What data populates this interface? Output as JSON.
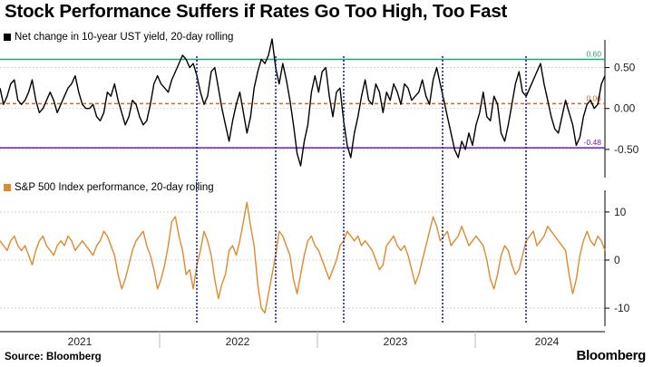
{
  "title": "Stock Performance Suffers if Rates Go Too High, Too Fast",
  "source": "Source: Bloomberg",
  "brand": "Bloomberg",
  "colors": {
    "yield": "#000000",
    "sp500": "#e0892d",
    "upper": "#22a07a",
    "mean": "#d2691e",
    "lower": "#6a1fb4",
    "vline": "#1a2b8f"
  },
  "chart_data": [
    {
      "type": "line",
      "legend": "Net change in 10-year UST yield, 20-day rolling",
      "ylim": [
        -0.8,
        0.75
      ],
      "yticks": [
        "0.50",
        "0.00",
        "-0.50"
      ],
      "yticks_values": [
        0.5,
        0.0,
        -0.5
      ],
      "reference_lines": [
        {
          "label": "0.60",
          "value": 0.6
        },
        {
          "label": "0.06",
          "value": 0.06
        },
        {
          "label": "-0.48",
          "value": -0.48
        }
      ],
      "series": [
        {
          "values": [
            0.25,
            0.05,
            0.15,
            0.3,
            0.35,
            0.1,
            0.05,
            0.1,
            0.2,
            0.35,
            0.1,
            -0.05,
            0.0,
            0.1,
            0.2,
            0.1,
            -0.05,
            0.05,
            0.15,
            0.25,
            0.3,
            0.4,
            0.2,
            0.05,
            0.0,
            0.0,
            0.05,
            -0.1,
            -0.15,
            -0.05,
            0.2,
            0.15,
            0.3,
            0.1,
            -0.05,
            -0.2,
            -0.1,
            0.1,
            0.05,
            -0.1,
            -0.2,
            -0.15,
            0.05,
            0.3,
            0.4,
            0.3,
            0.25,
            0.2,
            0.35,
            0.45,
            0.55,
            0.65,
            0.6,
            0.5,
            0.55,
            0.4,
            0.2,
            0.05,
            0.15,
            0.45,
            0.5,
            0.25,
            0.0,
            -0.2,
            -0.4,
            -0.15,
            0.05,
            0.2,
            -0.05,
            -0.3,
            -0.1,
            0.25,
            0.45,
            0.6,
            0.55,
            0.65,
            0.85,
            0.5,
            0.3,
            0.55,
            0.35,
            0.1,
            -0.2,
            -0.55,
            -0.7,
            -0.4,
            -0.2,
            0.2,
            0.4,
            0.2,
            0.45,
            0.5,
            0.15,
            -0.1,
            0.2,
            0.25,
            -0.15,
            -0.45,
            -0.6,
            -0.3,
            -0.1,
            0.15,
            0.35,
            0.1,
            0.05,
            0.3,
            0.2,
            -0.05,
            0.2,
            0.1,
            0.3,
            0.2,
            0.05,
            0.3,
            0.25,
            0.1,
            0.15,
            0.2,
            0.35,
            0.15,
            0.05,
            0.35,
            0.5,
            0.3,
            0.1,
            -0.1,
            -0.3,
            -0.5,
            -0.6,
            -0.4,
            -0.5,
            -0.3,
            -0.45,
            -0.2,
            -0.05,
            0.2,
            -0.1,
            -0.15,
            0.15,
            0.05,
            -0.3,
            -0.4,
            -0.2,
            0.05,
            0.3,
            0.45,
            0.2,
            0.15,
            0.25,
            0.35,
            0.45,
            0.55,
            0.3,
            0.1,
            -0.1,
            -0.25,
            -0.3,
            -0.1,
            0.1,
            -0.05,
            -0.2,
            -0.45,
            -0.35,
            -0.1,
            0.05,
            0.1,
            0.0,
            0.05,
            0.3,
            0.4
          ]
        }
      ]
    },
    {
      "type": "line",
      "legend": "S&P 500 Index performance, 20-day rolling",
      "ylim": [
        -13,
        13
      ],
      "yticks": [
        "10",
        "0",
        "-10"
      ],
      "yticks_values": [
        10,
        0,
        -10
      ],
      "series": [
        {
          "values": [
            4,
            3,
            2,
            4,
            5,
            3,
            2,
            3,
            1,
            -1,
            2,
            4,
            5,
            3,
            2,
            1,
            3,
            4,
            3,
            5,
            4,
            2,
            3,
            4,
            3,
            2,
            1,
            3,
            4,
            6,
            5,
            3,
            1,
            -3,
            -6,
            -4,
            -1,
            2,
            4,
            5,
            6,
            3,
            1,
            -2,
            -6,
            -4,
            -1,
            3,
            8,
            9,
            5,
            2,
            -3,
            -2,
            -6,
            -1,
            2,
            6,
            4,
            1,
            -4,
            -8,
            -5,
            -3,
            2,
            3,
            1,
            4,
            8,
            12,
            7,
            3,
            -5,
            -10,
            -11,
            -7,
            -3,
            1,
            6,
            5,
            3,
            1,
            -4,
            -7,
            -3,
            1,
            4,
            5,
            3,
            2,
            0,
            -2,
            -4,
            -2,
            0,
            3,
            4,
            6,
            5,
            4,
            5,
            3,
            4,
            3,
            2,
            0,
            -2,
            -1,
            3,
            4,
            5,
            3,
            2,
            3,
            1,
            -2,
            -5,
            -3,
            0,
            3,
            6,
            9,
            7,
            4,
            5,
            6,
            3,
            4,
            5,
            7,
            5,
            3,
            4,
            5,
            4,
            3,
            0,
            -4,
            -6,
            -3,
            1,
            3,
            2,
            -1,
            -3,
            -2,
            1,
            4,
            5,
            6,
            3,
            4,
            5,
            7,
            6,
            5,
            4,
            3,
            2,
            -3,
            -7,
            -4,
            1,
            4,
            6,
            4,
            3,
            5,
            4,
            2
          ]
        }
      ]
    }
  ],
  "x_axis": {
    "labels": [
      "2021",
      "2022",
      "2023",
      "2024"
    ]
  }
}
